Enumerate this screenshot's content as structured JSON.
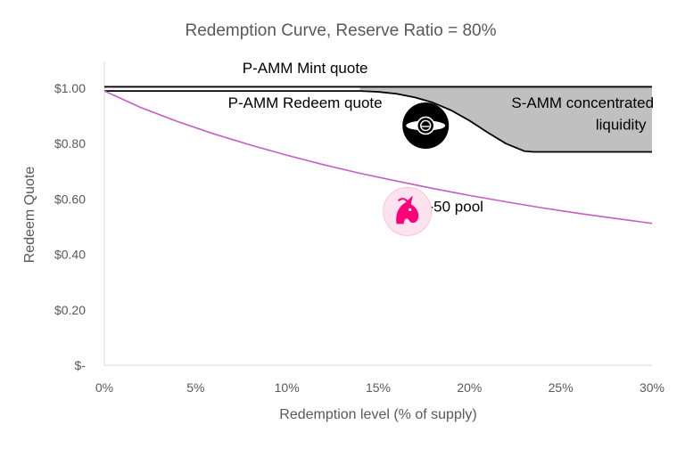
{
  "chart_data": {
    "type": "line",
    "title": "Redemption Curve, Reserve Ratio = 80%",
    "xlabel": "Redemption level (% of supply)",
    "ylabel": "Redeem Quote",
    "xlim": [
      0,
      30
    ],
    "ylim": [
      0,
      1.0
    ],
    "x_ticks": [
      {
        "value": 0,
        "label": "0%"
      },
      {
        "value": 5,
        "label": "5%"
      },
      {
        "value": 10,
        "label": "10%"
      },
      {
        "value": 15,
        "label": "15%"
      },
      {
        "value": 20,
        "label": "20%"
      },
      {
        "value": 25,
        "label": "25%"
      },
      {
        "value": 30,
        "label": "30%"
      }
    ],
    "y_ticks": [
      {
        "value": 0,
        "label": "$-"
      },
      {
        "value": 0.2,
        "label": "$0.20"
      },
      {
        "value": 0.4,
        "label": "$0.40"
      },
      {
        "value": 0.6,
        "label": "$0.60"
      },
      {
        "value": 0.8,
        "label": "$0.80"
      },
      {
        "value": 1.0,
        "label": "$1.00"
      }
    ],
    "grid": false,
    "legend": "none",
    "series": [
      {
        "id": "mint",
        "color": "#000000",
        "points": [
          [
            0,
            1.005
          ],
          [
            30,
            1.005
          ]
        ]
      },
      {
        "id": "redeem",
        "color": "#000000",
        "points": [
          [
            0,
            0.99
          ],
          [
            14,
            0.99
          ],
          [
            15,
            0.987
          ],
          [
            16,
            0.98
          ],
          [
            17,
            0.967
          ],
          [
            18,
            0.948
          ],
          [
            19,
            0.92
          ],
          [
            20,
            0.883
          ],
          [
            21,
            0.84
          ],
          [
            22,
            0.8
          ],
          [
            23,
            0.773
          ],
          [
            23.5,
            0.77
          ],
          [
            30,
            0.77
          ]
        ]
      },
      {
        "id": "pool",
        "color": "#c45ec4",
        "points": [
          [
            0,
            0.99
          ],
          [
            2,
            0.93
          ],
          [
            4,
            0.88
          ],
          [
            6,
            0.835
          ],
          [
            8,
            0.795
          ],
          [
            10,
            0.758
          ],
          [
            12,
            0.724
          ],
          [
            14,
            0.693
          ],
          [
            16,
            0.665
          ],
          [
            18,
            0.638
          ],
          [
            20,
            0.613
          ],
          [
            22,
            0.59
          ],
          [
            24,
            0.568
          ],
          [
            26,
            0.548
          ],
          [
            28,
            0.53
          ],
          [
            30,
            0.512
          ]
        ]
      }
    ],
    "shaded_region": {
      "between": [
        "mint",
        "redeem"
      ],
      "color": "#c0c0c0"
    },
    "annotations": [
      {
        "text": "P-AMM Mint quote",
        "x": 11,
        "y": 1.055
      },
      {
        "text": "P-AMM Redeem quote",
        "x": 11,
        "y": 0.93
      },
      {
        "text": "S-AMM concentrated",
        "x": 26.2,
        "y": 0.93
      },
      {
        "text": "liquidity",
        "x": 28.3,
        "y": 0.85
      },
      {
        "text": "50-50 pool",
        "x": 18.8,
        "y": 0.555
      }
    ],
    "icons": [
      {
        "name": "gyroscope-logo-icon",
        "x": 17.6,
        "y": 0.865
      },
      {
        "name": "uniswap-unicorn-icon",
        "x": 16.6,
        "y": 0.555
      }
    ]
  }
}
